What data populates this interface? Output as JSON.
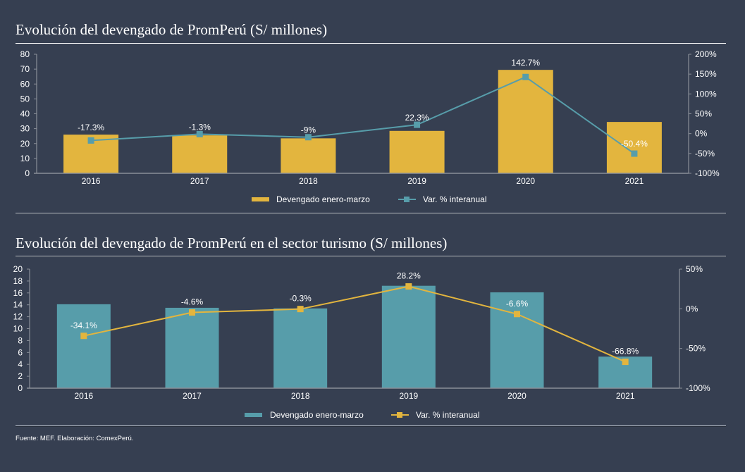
{
  "colors": {
    "background": "#363f51",
    "gold": "#e3b53e",
    "teal": "#579daa",
    "axis": "#8a8f98",
    "text": "#ffffff"
  },
  "chart_data": [
    {
      "type": "bar+line",
      "title": "Evolución del devengado de PromPerú (S/ millones)",
      "categories": [
        "2016",
        "2017",
        "2018",
        "2019",
        "2020",
        "2021"
      ],
      "series": [
        {
          "name": "Devengado enero-marzo",
          "kind": "bar",
          "axis": "left",
          "color": "#e3b53e",
          "values": [
            26,
            25.5,
            23.5,
            28.5,
            69.5,
            34.5
          ]
        },
        {
          "name": "Var. % interanual",
          "kind": "line",
          "axis": "right",
          "color": "#579daa",
          "values": [
            -17.3,
            -1.3,
            -9,
            22.3,
            142.7,
            -50.4
          ],
          "labels": [
            "-17.3%",
            "-1.3%",
            "-9%",
            "22.3%",
            "142.7%",
            "-50.4%"
          ]
        }
      ],
      "y_left": {
        "ylim": [
          0,
          80
        ],
        "ticks": [
          0,
          10,
          20,
          30,
          40,
          50,
          60,
          70,
          80
        ],
        "tick_labels": [
          "0",
          "10",
          "20",
          "30",
          "40",
          "50",
          "60",
          "70",
          "80"
        ]
      },
      "y_right": {
        "ylim": [
          -100,
          200
        ],
        "ticks": [
          -100,
          -50,
          0,
          50,
          100,
          150,
          200
        ],
        "tick_labels": [
          "-100%",
          "-50%",
          "0%",
          "50%",
          "100%",
          "150%",
          "200%"
        ]
      },
      "legend": {
        "position": "bottom",
        "items": [
          "Devengado enero-marzo",
          "Var. % interanual"
        ]
      },
      "grid": false
    },
    {
      "type": "bar+line",
      "title": "Evolución del devengado de PromPerú en el sector turismo (S/ millones)",
      "categories": [
        "2016",
        "2017",
        "2018",
        "2019",
        "2020",
        "2021"
      ],
      "series": [
        {
          "name": "Devengado enero-marzo",
          "kind": "bar",
          "axis": "left",
          "color": "#579daa",
          "values": [
            14.1,
            13.5,
            13.4,
            17.2,
            16.1,
            5.3
          ]
        },
        {
          "name": "Var. % interanual",
          "kind": "line",
          "axis": "right",
          "color": "#e3b53e",
          "values": [
            -34.1,
            -4.6,
            -0.3,
            28.2,
            -6.6,
            -66.8
          ],
          "labels": [
            "-34.1%",
            "-4.6%",
            "-0.3%",
            "28.2%",
            "-6.6%",
            "-66.8%"
          ]
        }
      ],
      "y_left": {
        "ylim": [
          0,
          20
        ],
        "ticks": [
          0,
          2,
          4,
          6,
          8,
          10,
          12,
          14,
          16,
          18,
          20
        ],
        "tick_labels": [
          "0",
          "2",
          "4",
          "6",
          "8",
          "10",
          "12",
          "14",
          "16",
          "18",
          "20"
        ]
      },
      "y_right": {
        "ylim": [
          -100,
          50
        ],
        "ticks": [
          -100,
          -50,
          0,
          50
        ],
        "tick_labels": [
          "-100%",
          "-50%",
          "0%",
          "50%"
        ]
      },
      "legend": {
        "position": "bottom",
        "items": [
          "Devengado enero-marzo",
          "Var. % interanual"
        ]
      },
      "grid": false
    }
  ],
  "footer": {
    "source": "Fuente: MEF. Elaboración: ComexPerú."
  }
}
